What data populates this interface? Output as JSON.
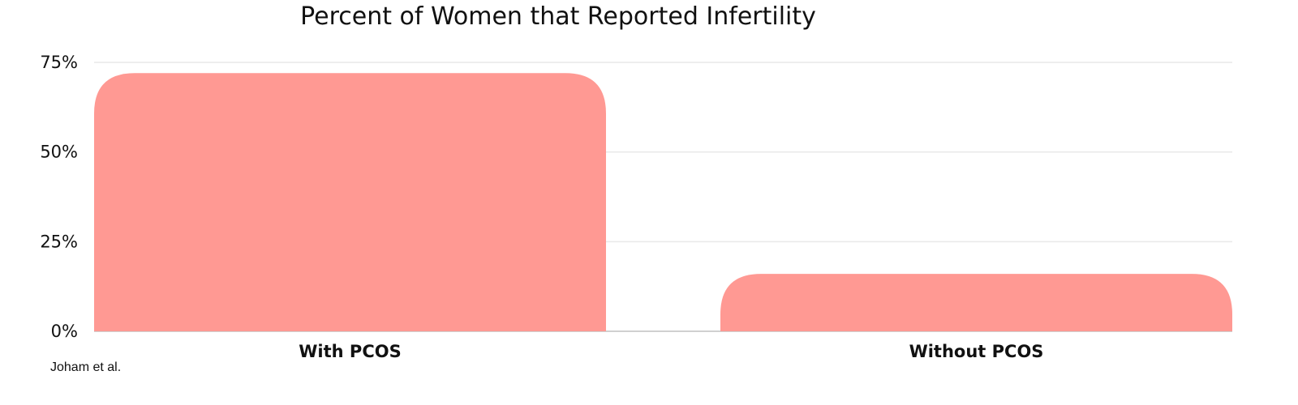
{
  "chart_data": {
    "type": "bar",
    "title": "Percent of Women that Reported Infertility",
    "categories": [
      "With PCOS",
      "Without PCOS"
    ],
    "values": [
      72,
      16
    ],
    "ylim": [
      0,
      75
    ],
    "yticks": [
      0,
      25,
      50,
      75
    ],
    "ytick_labels": [
      "0%",
      "25%",
      "50%",
      "75%"
    ],
    "grid": true,
    "bar_color": "#ff9993",
    "source": "Joham et al."
  }
}
